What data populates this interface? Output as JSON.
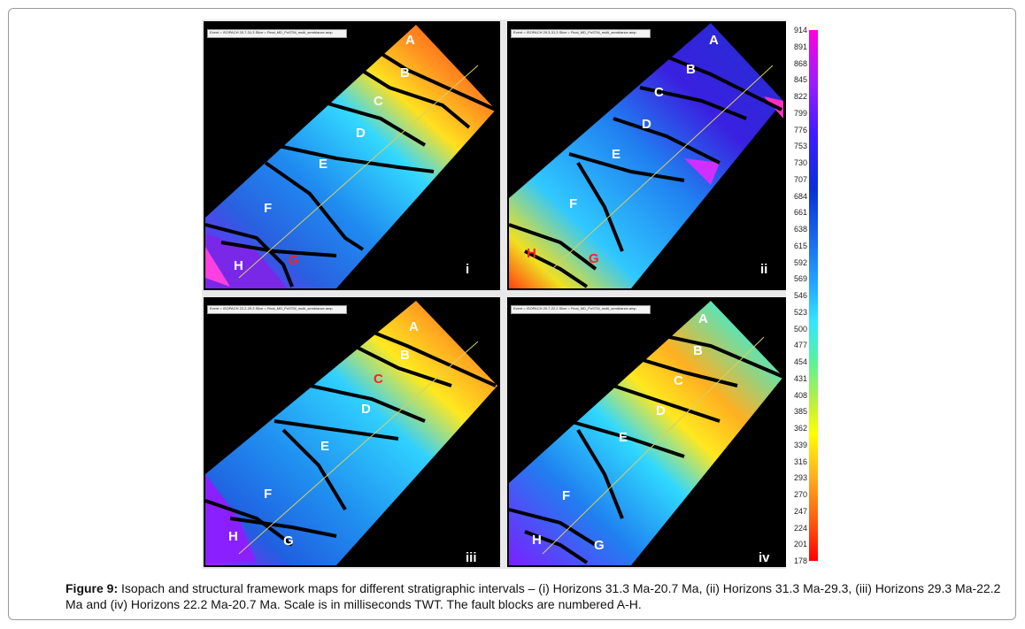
{
  "panels": [
    {
      "id": "i",
      "number": "i",
      "legend": "Event = ISOPACH 20.7-31.3  Slice = Final_MD_PoSTM_multi_semblance.amp",
      "blocks": [
        {
          "label": "A",
          "red": false
        },
        {
          "label": "B",
          "red": false
        },
        {
          "label": "C",
          "red": false
        },
        {
          "label": "D",
          "red": false
        },
        {
          "label": "E",
          "red": false
        },
        {
          "label": "F",
          "red": false
        },
        {
          "label": "G",
          "red": true
        },
        {
          "label": "H",
          "red": false
        }
      ]
    },
    {
      "id": "ii",
      "number": "ii",
      "legend": "Event = ISOPACH 29.3-31.3  Slice = Final_MD_PoSTM_multi_semblance.amp",
      "blocks": [
        {
          "label": "A",
          "red": false
        },
        {
          "label": "B",
          "red": false
        },
        {
          "label": "C",
          "red": false
        },
        {
          "label": "D",
          "red": false
        },
        {
          "label": "E",
          "red": false
        },
        {
          "label": "F",
          "red": false
        },
        {
          "label": "G",
          "red": true
        },
        {
          "label": "H",
          "red": true
        }
      ]
    },
    {
      "id": "iii",
      "number": "iii",
      "legend": "Event = ISOPACH 22.2-29.3  Slice = Final_MD_PoSTM_multi_semblance.amp",
      "blocks": [
        {
          "label": "A",
          "red": false
        },
        {
          "label": "B",
          "red": false
        },
        {
          "label": "C",
          "red": true
        },
        {
          "label": "D",
          "red": false
        },
        {
          "label": "E",
          "red": false
        },
        {
          "label": "F",
          "red": false
        },
        {
          "label": "G",
          "red": false
        },
        {
          "label": "H",
          "red": false
        }
      ]
    },
    {
      "id": "iv",
      "number": "iv",
      "legend": "Event = ISOPACH 20.7-22.2  Slice = Final_MD_PoSTM_multi_semblance.amp",
      "blocks": [
        {
          "label": "A",
          "red": false
        },
        {
          "label": "B",
          "red": false
        },
        {
          "label": "C",
          "red": false
        },
        {
          "label": "D",
          "red": false
        },
        {
          "label": "E",
          "red": false
        },
        {
          "label": "F",
          "red": false
        },
        {
          "label": "G",
          "red": false
        },
        {
          "label": "H",
          "red": false
        }
      ]
    }
  ],
  "scale": {
    "ticks": [
      "914",
      "891",
      "868",
      "845",
      "822",
      "799",
      "776",
      "753",
      "730",
      "707",
      "684",
      "661",
      "638",
      "615",
      "592",
      "569",
      "546",
      "523",
      "500",
      "477",
      "454",
      "431",
      "408",
      "385",
      "362",
      "339",
      "316",
      "293",
      "270",
      "247",
      "224",
      "201",
      "178"
    ]
  },
  "caption": {
    "label": "Figure 9:",
    "text": " Isopach and structural framework maps for different stratigraphic intervals – (i) Horizons 31.3 Ma-20.7 Ma, (ii) Horizons 31.3 Ma-29.3, (iii) Horizons 29.3 Ma-22.2 Ma and (iv) Horizons 22.2 Ma-20.7 Ma. Scale is in milliseconds TWT. The fault blocks are numbered A-H."
  }
}
